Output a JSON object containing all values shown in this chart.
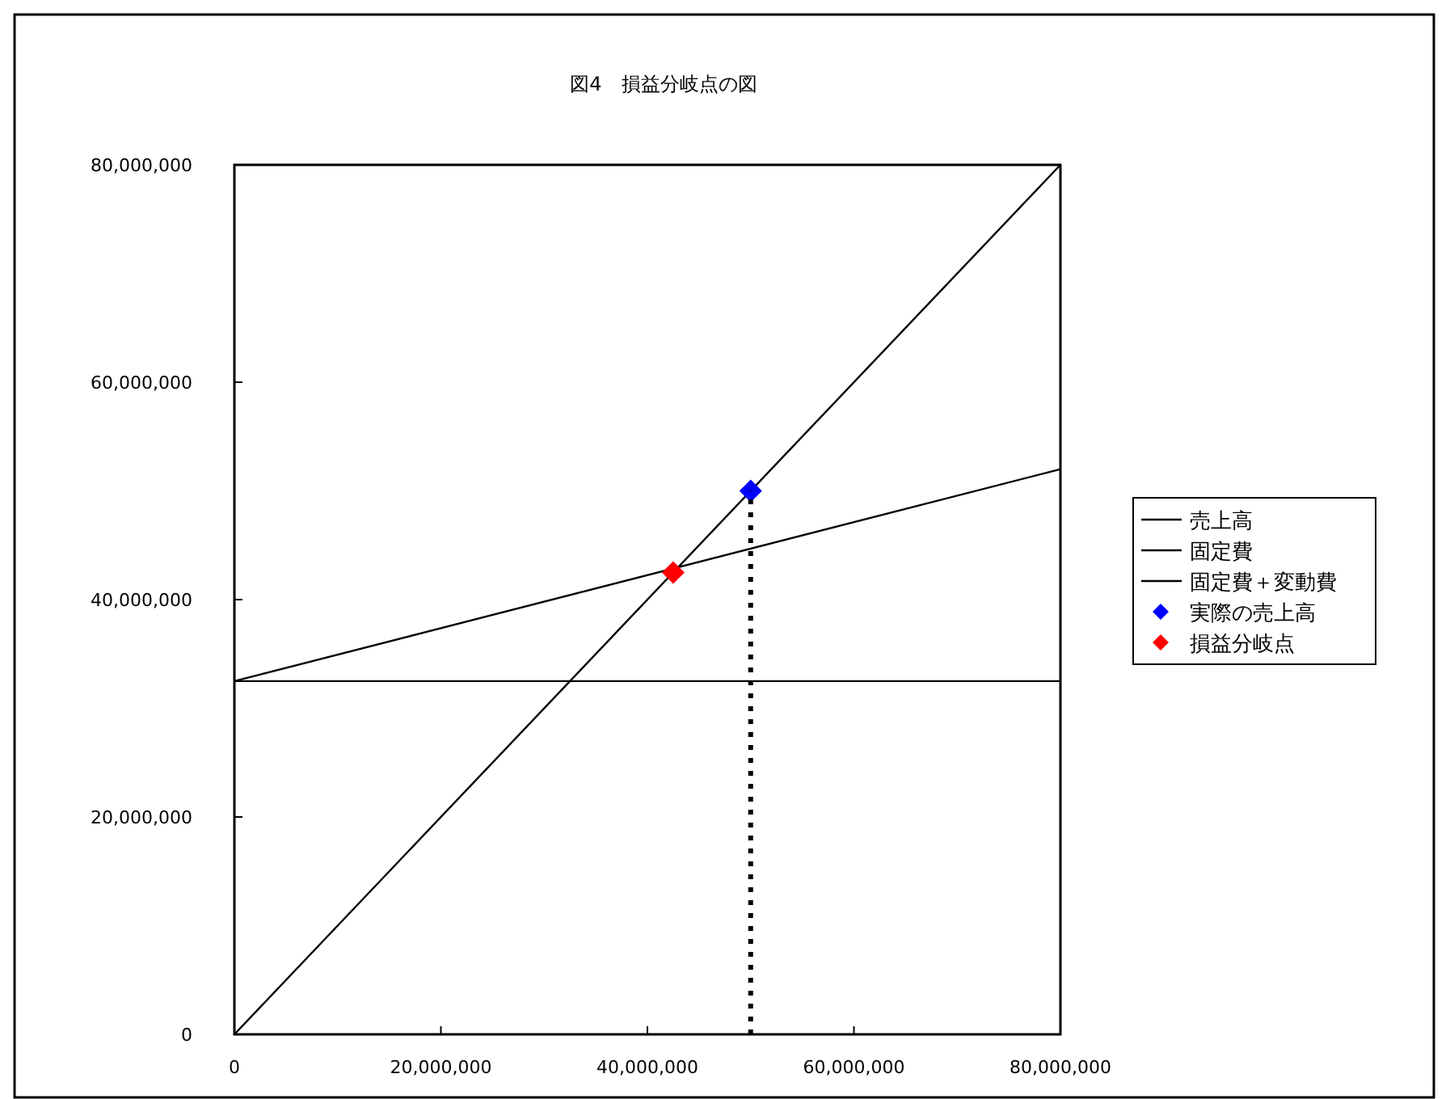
{
  "chart_data": {
    "type": "line",
    "title": "図4　損益分岐点の図",
    "xlim": [
      0,
      80000000
    ],
    "ylim": [
      0,
      80000000
    ],
    "xticks": [
      0,
      {
        "value": 20000000,
        "label": "20,000,000"
      },
      {
        "value": 40000000,
        "label": "40,000,000"
      },
      {
        "value": 60000000,
        "label": "60,000,000"
      },
      {
        "value": 80000000,
        "label": "80,000,000"
      }
    ],
    "yticks": [
      0,
      {
        "value": 20000000,
        "label": "20,000,000"
      },
      {
        "value": 40000000,
        "label": "40,000,000"
      },
      {
        "value": 60000000,
        "label": "60,000,000"
      },
      {
        "value": 80000000,
        "label": "80,000,000"
      }
    ],
    "grid": false,
    "legend": "right",
    "marker": "none",
    "series": [
      {
        "name": "売上高",
        "color": "#000000",
        "x": [
          0,
          80000000
        ],
        "values": [
          0,
          80000000
        ]
      },
      {
        "name": "固定費",
        "color": "#000000",
        "x": [
          0,
          80000000
        ],
        "values": [
          32500000,
          32500000
        ]
      },
      {
        "name": "固定費＋変動費",
        "color": "#000000",
        "x": [
          0,
          80000000
        ],
        "values": [
          32500000,
          52000000
        ]
      },
      {
        "name": "実際の売上高",
        "type": "scatter",
        "marker": "diamond",
        "color": "#0000ff",
        "x": [
          50000000
        ],
        "values": [
          50000000
        ]
      },
      {
        "name": "損益分岐点",
        "type": "scatter",
        "marker": "diamond",
        "color": "#ff0000",
        "x": [
          42500000
        ],
        "values": [
          42500000
        ]
      },
      {
        "line_style": "dotted",
        "color": "#000000",
        "x": [
          50000000,
          50000000
        ],
        "values": [
          0,
          50000000
        ]
      }
    ]
  }
}
